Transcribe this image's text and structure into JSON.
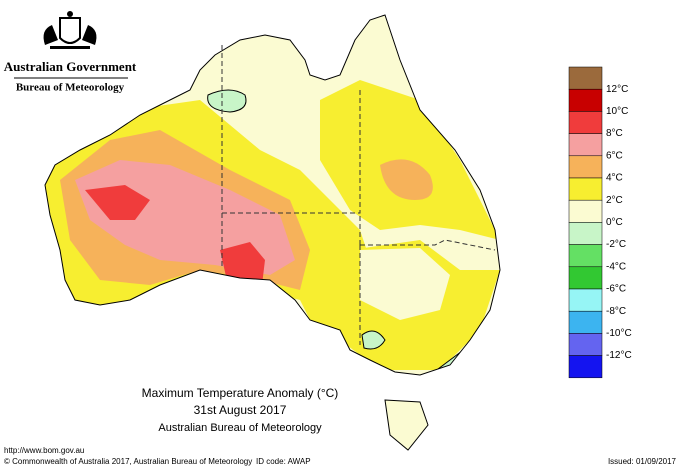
{
  "header": {
    "government": "Australian Government",
    "agency": "Bureau of Meteorology"
  },
  "map": {
    "title": "Maximum Temperature Anomaly (°C)",
    "date": "31st August 2017",
    "source": "Australian Bureau of Meteorology"
  },
  "legend": {
    "colors": [
      "#9b6a3c",
      "#c80000",
      "#f03c3c",
      "#f5a0a0",
      "#f6b25a",
      "#f7ee30",
      "#fbfbd2",
      "#c8f5c8",
      "#64e064",
      "#32c832",
      "#96f5f5",
      "#3cb4f0",
      "#6464f0",
      "#1414f0"
    ],
    "labels": [
      "12°C",
      "10°C",
      "8°C",
      "6°C",
      "4°C",
      "2°C",
      "0°C",
      "-2°C",
      "-4°C",
      "-6°C",
      "-8°C",
      "-10°C",
      "-12°C"
    ]
  },
  "footer": {
    "url": "http://www.bom.gov.au",
    "copyright": "© Commonwealth of Australia 2017, Australian Bureau of Meteorology",
    "id": "ID code: AWAP",
    "issued": "Issued: 01/09/2017"
  }
}
